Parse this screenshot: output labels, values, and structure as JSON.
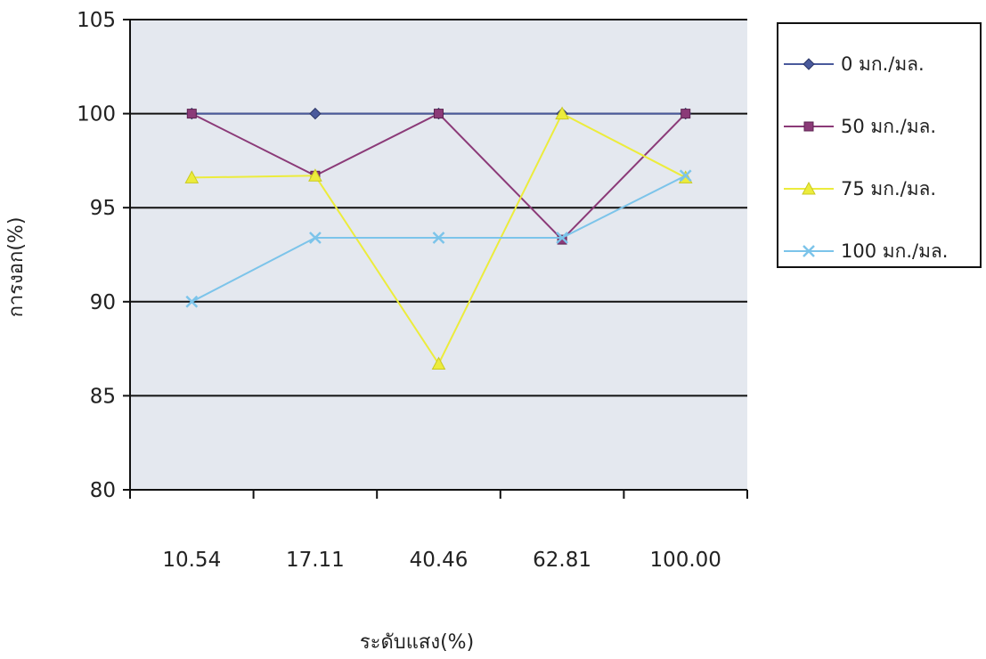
{
  "chart_data": {
    "type": "line",
    "xlabel": "ระดับแสง(%)",
    "ylabel": "การงอก(%)",
    "categories": [
      "10.54",
      "17.11",
      "40.46",
      "62.81",
      "100.00"
    ],
    "ylim": [
      80,
      105
    ],
    "yticks": [
      80,
      85,
      90,
      95,
      100,
      105
    ],
    "grid": true,
    "legend_position": "right",
    "series": [
      {
        "name": "0  มก./มล.",
        "color": "#4a5a9c",
        "marker": "diamond",
        "values": [
          100,
          100,
          100,
          100,
          100
        ]
      },
      {
        "name": "50 มก./มล.",
        "color": "#8b3a78",
        "marker": "square",
        "values": [
          100,
          96.7,
          100,
          93.3,
          100
        ]
      },
      {
        "name": "75 มก./มล.",
        "color": "#ecec3c",
        "marker": "triangle",
        "values": [
          96.6,
          96.7,
          86.7,
          100,
          96.6
        ]
      },
      {
        "name": "100 มก./มล.",
        "color": "#7cc4ea",
        "marker": "x",
        "values": [
          90,
          93.4,
          93.4,
          93.4,
          96.7
        ]
      }
    ]
  }
}
